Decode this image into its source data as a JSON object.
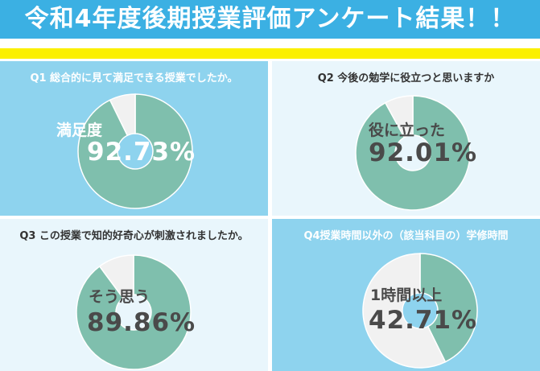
{
  "title": "令和4年度後期授業評価アンケート結果！！",
  "colors": {
    "header": "#3bb0e3",
    "stripe": "#fbf000",
    "panel_blue": "#8ed3ee",
    "panel_light": "#e9f6fc",
    "donut_fill": "#7fbfad",
    "donut_rest": "#f1f1f1"
  },
  "chart_data": [
    {
      "type": "pie",
      "title": "Q1 総合的に見て満足できる授業でしたか。",
      "label": "満足度",
      "value_text": "92.73%",
      "values": [
        92.73,
        7.27
      ]
    },
    {
      "type": "pie",
      "title": "Q2 今後の勉学に役立つと思いますか",
      "label": "役に立った",
      "value_text": "92.01%",
      "values": [
        92.01,
        7.99
      ]
    },
    {
      "type": "pie",
      "title": "Q3 この授業で知的好奇心が刺激されましたか。",
      "label": "そう思う",
      "value_text": "89.86%",
      "values": [
        89.86,
        10.14
      ]
    },
    {
      "type": "pie",
      "title": "Q4授業時間以外の（該当科目の）学修時間",
      "label": "1時間以上",
      "value_text": "42.71%",
      "values": [
        42.71,
        57.29
      ]
    }
  ]
}
